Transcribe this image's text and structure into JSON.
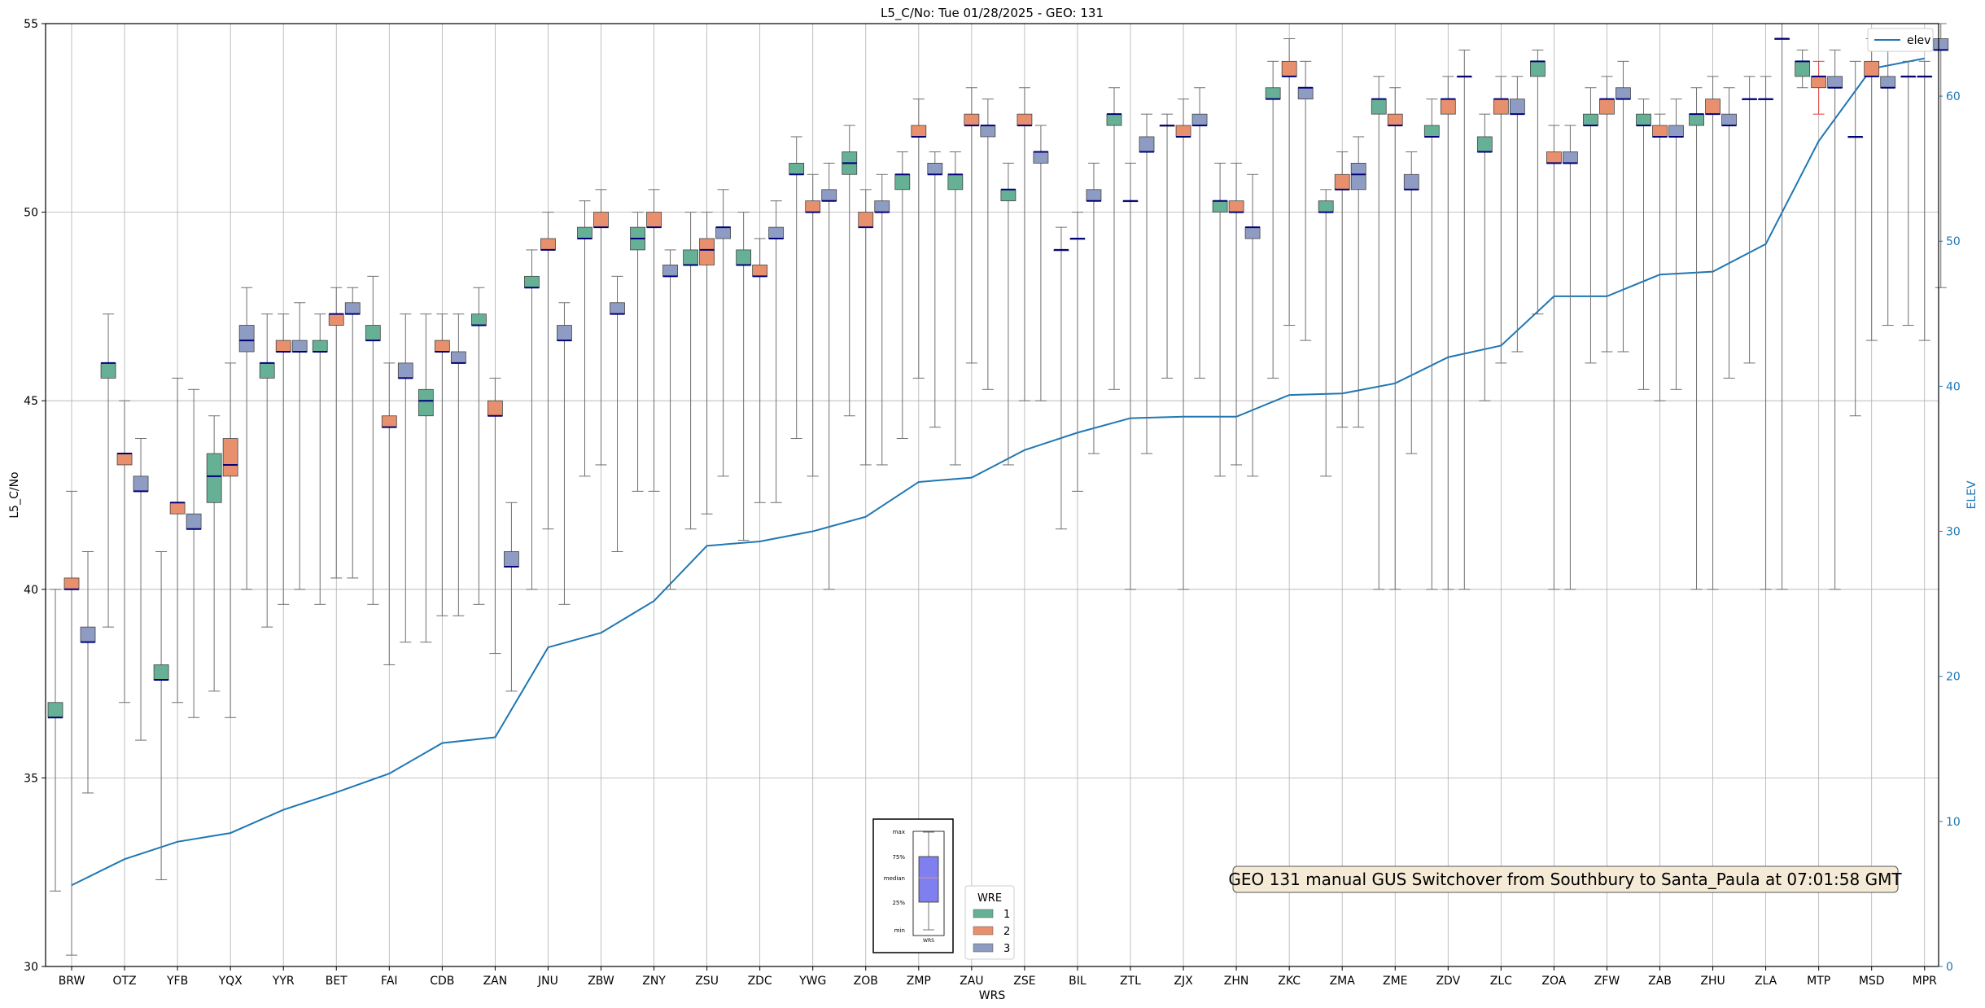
{
  "colors": {
    "wre1": "#66b096",
    "wre2": "#e8906d",
    "wre3": "#8e9cc3",
    "median": "#00007a",
    "whisker": "#6f6f6f",
    "whisker_red": "#e03a3a",
    "elev": "#1f77b4",
    "grid": "#b0b0b0",
    "annotation_bg": "#f5deb3",
    "legend_box": "#7f7ff0"
  },
  "chart_data": {
    "type": "box",
    "title": "L5_C/No: Tue 01/28/2025 - GEO: 131",
    "xlabel": "WRS",
    "ylabel": "L5_C/No",
    "y2label": "ELEV",
    "ylim": [
      30,
      55
    ],
    "y2lim": [
      0,
      65
    ],
    "yticks": [
      "30",
      "35",
      "40",
      "45",
      "50",
      "55"
    ],
    "y2ticks": [
      "0",
      "10",
      "20",
      "30",
      "40",
      "50",
      "60"
    ],
    "grid": true,
    "categories": [
      "BRW",
      "OTZ",
      "YFB",
      "YQX",
      "YYR",
      "BET",
      "FAI",
      "CDB",
      "ZAN",
      "JNU",
      "ZBW",
      "ZNY",
      "ZSU",
      "ZDC",
      "YWG",
      "ZOB",
      "ZMP",
      "ZAU",
      "ZSE",
      "BIL",
      "ZTL",
      "ZJX",
      "ZHN",
      "ZKC",
      "ZMA",
      "ZME",
      "ZDV",
      "ZLC",
      "ZOA",
      "ZFW",
      "ZAB",
      "ZHU",
      "ZLA",
      "MTP",
      "MSD",
      "MPR"
    ],
    "series": [
      {
        "name": "1",
        "boxes": [
          [
            32.0,
            36.6,
            36.6,
            37.0,
            40.0
          ],
          [
            39.0,
            45.6,
            46.0,
            46.0,
            47.3
          ],
          [
            32.3,
            37.6,
            37.6,
            38.0,
            41.0
          ],
          [
            37.3,
            42.3,
            43.0,
            43.6,
            44.6
          ],
          [
            39.0,
            45.6,
            46.0,
            46.0,
            47.3
          ],
          [
            39.6,
            46.3,
            46.3,
            46.6,
            47.3
          ],
          [
            39.6,
            46.6,
            46.6,
            47.0,
            48.3
          ],
          [
            38.6,
            44.6,
            45.0,
            45.3,
            47.3
          ],
          [
            39.6,
            47.0,
            47.0,
            47.3,
            48.0
          ],
          [
            40.0,
            48.0,
            48.0,
            48.3,
            49.0
          ],
          [
            43.0,
            49.3,
            49.3,
            49.6,
            50.3
          ],
          [
            42.6,
            49.0,
            49.3,
            49.6,
            50.0
          ],
          [
            41.6,
            48.6,
            48.6,
            49.0,
            50.0
          ],
          [
            41.3,
            48.6,
            48.6,
            49.0,
            50.0
          ],
          [
            44.0,
            51.0,
            51.0,
            51.3,
            52.0
          ],
          [
            44.6,
            51.0,
            51.3,
            51.6,
            52.3
          ],
          [
            44.0,
            50.6,
            51.0,
            51.0,
            51.6
          ],
          [
            43.3,
            50.6,
            51.0,
            51.0,
            51.6
          ],
          [
            43.3,
            50.3,
            50.6,
            50.6,
            51.3
          ],
          [
            41.6,
            49.0,
            49.0,
            49.0,
            49.6
          ],
          [
            45.3,
            52.3,
            52.6,
            52.6,
            53.3
          ],
          [
            45.6,
            52.3,
            52.3,
            52.3,
            52.6
          ],
          [
            43.0,
            50.0,
            50.3,
            50.3,
            51.3
          ],
          [
            45.6,
            53.0,
            53.0,
            53.3,
            54.0
          ],
          [
            43.0,
            50.0,
            50.0,
            50.3,
            50.6
          ],
          [
            40.0,
            52.6,
            53.0,
            53.0,
            53.6
          ],
          [
            40.0,
            52.0,
            52.0,
            52.3,
            53.0
          ],
          [
            45.0,
            51.6,
            51.6,
            52.0,
            52.6
          ],
          [
            47.3,
            53.6,
            54.0,
            54.0,
            54.3
          ],
          [
            46.0,
            52.3,
            52.3,
            52.6,
            53.3
          ],
          [
            45.3,
            52.3,
            52.3,
            52.6,
            53.0
          ],
          [
            40.0,
            52.3,
            52.6,
            52.6,
            53.3
          ],
          [
            46.0,
            53.0,
            53.0,
            53.0,
            53.6
          ],
          [
            53.3,
            53.6,
            54.0,
            54.0,
            54.3
          ],
          [
            44.6,
            52.0,
            52.0,
            52.0,
            54.0
          ],
          [
            47.0,
            53.6,
            53.6,
            53.6,
            54.0
          ]
        ]
      },
      {
        "name": "2",
        "boxes": [
          [
            30.3,
            40.0,
            40.0,
            40.3,
            42.6
          ],
          [
            37.0,
            43.3,
            43.6,
            43.6,
            45.0
          ],
          [
            37.0,
            42.0,
            42.3,
            42.3,
            45.6
          ],
          [
            36.6,
            43.0,
            43.3,
            44.0,
            46.0
          ],
          [
            39.6,
            46.3,
            46.3,
            46.6,
            47.3
          ],
          [
            40.3,
            47.0,
            47.3,
            47.3,
            48.0
          ],
          [
            38.0,
            44.3,
            44.3,
            44.6,
            46.0
          ],
          [
            39.3,
            46.3,
            46.3,
            46.6,
            47.3
          ],
          [
            38.3,
            44.6,
            44.6,
            45.0,
            45.6
          ],
          [
            41.6,
            49.0,
            49.0,
            49.3,
            50.0
          ],
          [
            43.3,
            49.6,
            49.6,
            50.0,
            50.6
          ],
          [
            42.6,
            49.6,
            49.6,
            50.0,
            50.6
          ],
          [
            42.0,
            48.6,
            49.0,
            49.3,
            50.0
          ],
          [
            42.3,
            48.3,
            48.3,
            48.6,
            49.3
          ],
          [
            43.0,
            50.0,
            50.0,
            50.3,
            51.0
          ],
          [
            43.3,
            49.6,
            49.6,
            50.0,
            50.6
          ],
          [
            45.6,
            52.0,
            52.0,
            52.3,
            53.0
          ],
          [
            46.0,
            52.3,
            52.3,
            52.6,
            53.3
          ],
          [
            45.0,
            52.3,
            52.3,
            52.6,
            53.3
          ],
          [
            42.6,
            49.3,
            49.3,
            49.3,
            50.0
          ],
          [
            40.0,
            50.3,
            50.3,
            50.3,
            51.3
          ],
          [
            40.0,
            52.0,
            52.0,
            52.3,
            53.0
          ],
          [
            43.3,
            50.0,
            50.0,
            50.3,
            51.3
          ],
          [
            47.0,
            53.6,
            53.6,
            54.0,
            54.6
          ],
          [
            44.3,
            50.6,
            50.6,
            51.0,
            51.6
          ],
          [
            40.0,
            52.3,
            52.3,
            52.6,
            53.3
          ],
          [
            40.0,
            52.6,
            53.0,
            53.0,
            53.6
          ],
          [
            46.0,
            52.6,
            53.0,
            53.0,
            53.6
          ],
          [
            40.0,
            51.3,
            51.3,
            51.6,
            52.3
          ],
          [
            46.3,
            52.6,
            53.0,
            53.0,
            53.6
          ],
          [
            45.0,
            52.0,
            52.0,
            52.3,
            52.6
          ],
          [
            40.0,
            52.6,
            52.6,
            53.0,
            53.6
          ],
          [
            40.0,
            53.0,
            53.0,
            53.0,
            53.6
          ],
          [
            52.6,
            53.3,
            53.6,
            53.6,
            54.0
          ],
          [
            46.6,
            53.6,
            53.6,
            54.0,
            54.6
          ],
          [
            46.6,
            53.6,
            53.6,
            53.6,
            54.0
          ]
        ]
      },
      {
        "name": "3",
        "boxes": [
          [
            34.6,
            38.6,
            38.6,
            39.0,
            41.0
          ],
          [
            36.0,
            42.6,
            42.6,
            43.0,
            44.0
          ],
          [
            36.6,
            41.6,
            41.6,
            42.0,
            45.3
          ],
          [
            40.0,
            46.3,
            46.6,
            47.0,
            48.0
          ],
          [
            40.0,
            46.3,
            46.3,
            46.6,
            47.6
          ],
          [
            40.3,
            47.3,
            47.3,
            47.6,
            48.0
          ],
          [
            38.6,
            45.6,
            45.6,
            46.0,
            47.3
          ],
          [
            39.3,
            46.0,
            46.0,
            46.3,
            47.3
          ],
          [
            37.3,
            40.6,
            40.6,
            41.0,
            42.3
          ],
          [
            39.6,
            46.6,
            46.6,
            47.0,
            47.6
          ],
          [
            41.0,
            47.3,
            47.3,
            47.6,
            48.3
          ],
          [
            40.0,
            48.3,
            48.3,
            48.6,
            49.0
          ],
          [
            43.0,
            49.3,
            49.6,
            49.6,
            50.6
          ],
          [
            42.3,
            49.3,
            49.3,
            49.6,
            50.3
          ],
          [
            40.0,
            50.3,
            50.3,
            50.6,
            51.3
          ],
          [
            43.3,
            50.0,
            50.0,
            50.3,
            51.0
          ],
          [
            44.3,
            51.0,
            51.0,
            51.3,
            51.6
          ],
          [
            45.3,
            52.0,
            52.3,
            52.3,
            53.0
          ],
          [
            45.0,
            51.3,
            51.6,
            51.6,
            52.3
          ],
          [
            43.6,
            50.3,
            50.3,
            50.6,
            51.3
          ],
          [
            43.6,
            51.6,
            51.6,
            52.0,
            52.6
          ],
          [
            45.6,
            52.3,
            52.3,
            52.6,
            53.3
          ],
          [
            43.0,
            49.3,
            49.6,
            49.6,
            51.0
          ],
          [
            46.6,
            53.0,
            53.3,
            53.3,
            54.0
          ],
          [
            44.3,
            50.6,
            51.0,
            51.3,
            52.0
          ],
          [
            43.6,
            50.6,
            50.6,
            51.0,
            51.6
          ],
          [
            40.0,
            53.6,
            53.6,
            53.6,
            54.3
          ],
          [
            46.3,
            52.6,
            52.6,
            53.0,
            53.6
          ],
          [
            40.0,
            51.3,
            51.3,
            51.6,
            52.3
          ],
          [
            46.3,
            53.0,
            53.0,
            53.3,
            54.0
          ],
          [
            45.3,
            52.0,
            52.0,
            52.3,
            53.0
          ],
          [
            45.6,
            52.3,
            52.3,
            52.6,
            53.3
          ],
          [
            40.0,
            54.6,
            54.6,
            54.6,
            55.0
          ],
          [
            40.0,
            53.3,
            53.3,
            53.6,
            54.3
          ],
          [
            47.0,
            53.3,
            53.3,
            53.6,
            54.3
          ],
          [
            48.0,
            54.3,
            54.3,
            54.6,
            55.0
          ]
        ]
      }
    ],
    "elev": {
      "name": "elev",
      "values": [
        5.6,
        7.4,
        8.6,
        9.2,
        10.8,
        12.0,
        13.3,
        15.4,
        15.8,
        22.0,
        23.0,
        25.2,
        29.0,
        29.3,
        30.0,
        31.0,
        33.4,
        33.7,
        35.6,
        36.8,
        37.8,
        37.9,
        37.9,
        39.4,
        39.5,
        40.2,
        42.0,
        42.8,
        46.2,
        46.2,
        47.7,
        47.9,
        49.8,
        56.9,
        61.9,
        62.6
      ],
      "axis": "right"
    },
    "legend_wre": {
      "title": "WRE",
      "items": [
        "1",
        "2",
        "3"
      ]
    },
    "legend_elev": {
      "label": "elev",
      "placement": "top-right"
    },
    "box_key": {
      "labels": [
        "max",
        "75%",
        "median",
        "25%",
        "min"
      ],
      "xlabel": "WRS"
    },
    "annotation": "GEO 131 manual GUS Switchover from Southbury to Santa_Paula at 07:01:58 GMT"
  }
}
